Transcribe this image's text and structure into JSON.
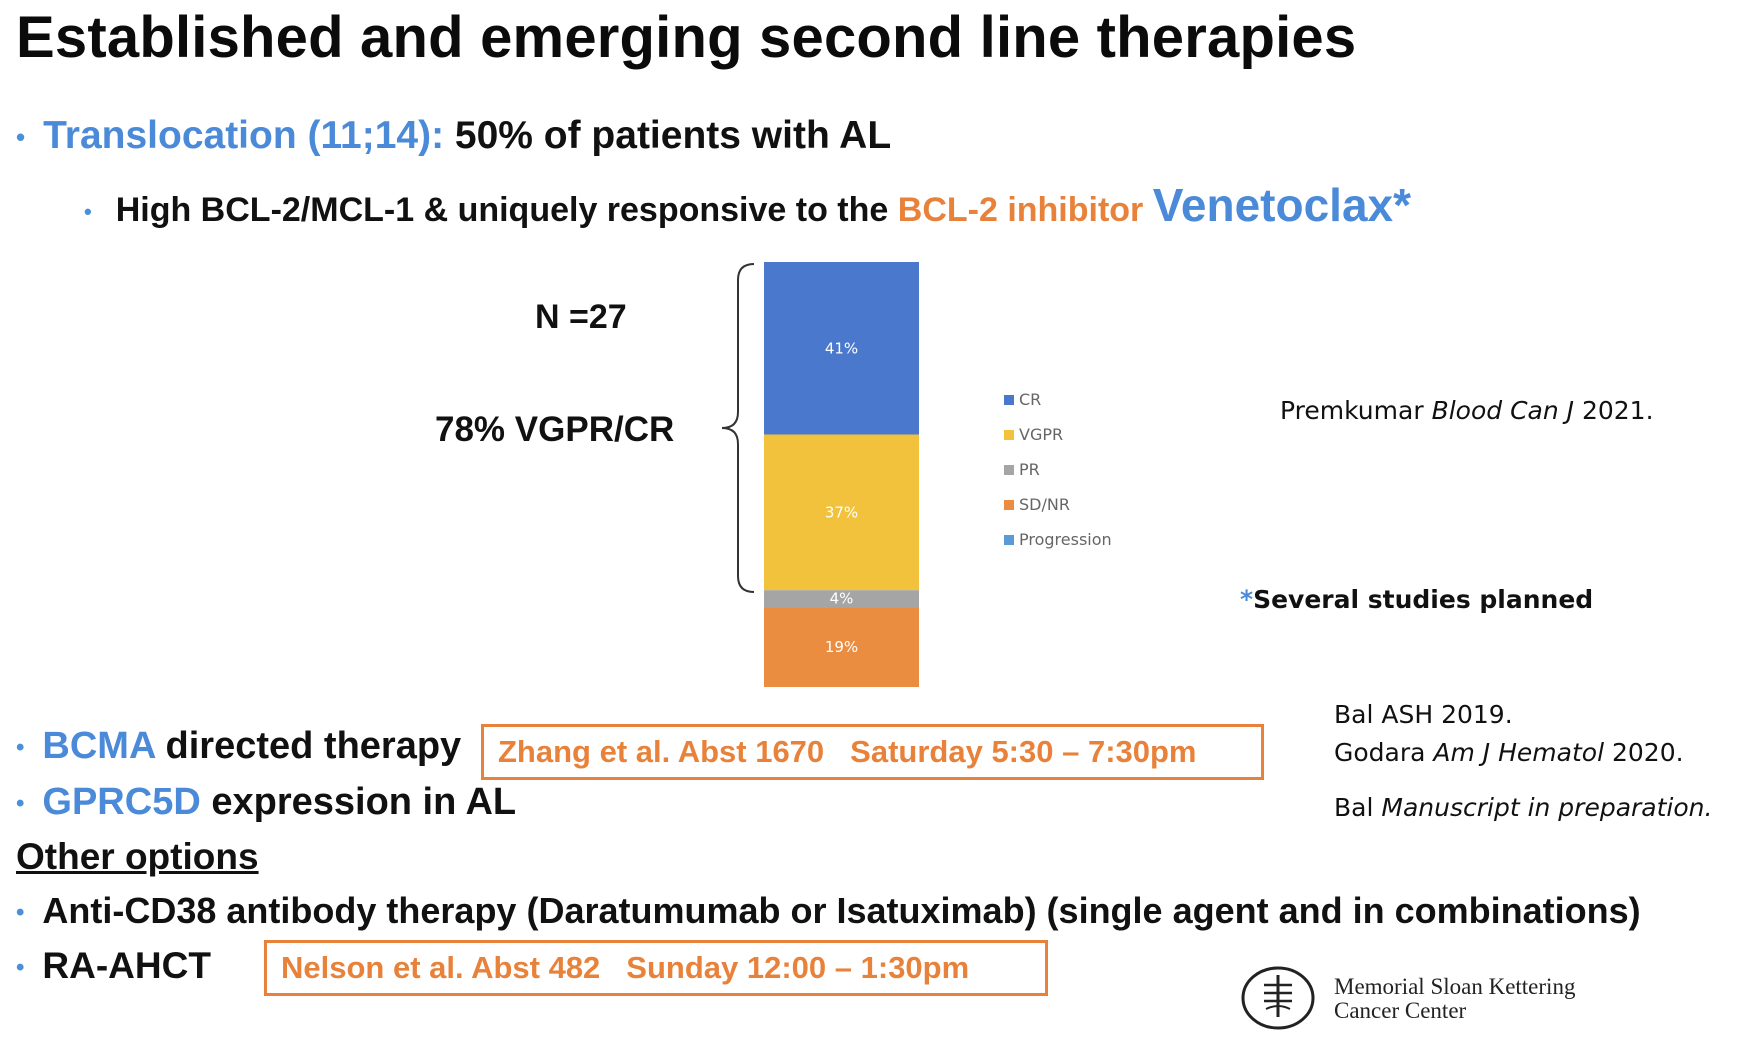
{
  "slide": {
    "title": "Established and emerging second line therapies",
    "bullet1": {
      "highlight": "Translocation (11;14):",
      "rest": " 50% of patients with AL"
    },
    "bullet1_sub": {
      "lead": "High BCL-2/MCL-1 & uniquely responsive to the ",
      "orange": "BCL-2 inhibitor",
      "drug": "Venetoclax*"
    },
    "n_label": "N =27",
    "response_label": "78% VGPR/CR",
    "citation_premkumar": {
      "name": "Premkumar ",
      "journal": "Blood Can J",
      "year": " 2021."
    },
    "several_studies": {
      "asterisk": "*",
      "text": "Several studies planned"
    },
    "bullet_bcma": {
      "highlight": "BCMA",
      "rest": " directed therapy"
    },
    "box_bcma": {
      "ref": "Zhang et al. Abst 1670",
      "time": "Saturday 5:30 – 7:30pm"
    },
    "bullet_gprc5d": {
      "highlight": "GPRC5D",
      "rest": " expression in AL"
    },
    "citation_bal": "Bal ASH 2019.",
    "citation_godara": {
      "name": "Godara ",
      "journal": "Am J Hematol",
      "year": " 2020."
    },
    "citation_bal2": {
      "name": "Bal  ",
      "note": "Manuscript in preparation."
    },
    "other_options": "Other options",
    "bullet_cd38": "Anti-CD38 antibody therapy (Daratumumab or Isatuximab) (single agent and in combinations)",
    "bullet_ahct": "RA-AHCT",
    "box_ahct": {
      "ref": "Nelson et al. Abst 482",
      "time": "Sunday 12:00 – 1:30pm"
    },
    "institution": {
      "line1": "Memorial Sloan Kettering",
      "line2": "Cancer Center"
    },
    "bullet_symbol": "•"
  },
  "chart_data": {
    "type": "bar",
    "stacked": true,
    "categories": [
      ""
    ],
    "series": [
      {
        "name": "CR",
        "values": [
          41
        ],
        "label": "41%",
        "color": "#4a78cc"
      },
      {
        "name": "VGPR",
        "values": [
          37
        ],
        "label": "37%",
        "color": "#f2c23c"
      },
      {
        "name": "PR",
        "values": [
          4
        ],
        "label": "4%",
        "color": "#a5a5a5"
      },
      {
        "name": "SD/NR",
        "values": [
          19
        ],
        "label": "19%",
        "color": "#eb8d41"
      },
      {
        "name": "Progression",
        "values": [
          0
        ],
        "label": "",
        "color": "#5b9bd5"
      }
    ],
    "legend_position": "right",
    "grid": false
  }
}
